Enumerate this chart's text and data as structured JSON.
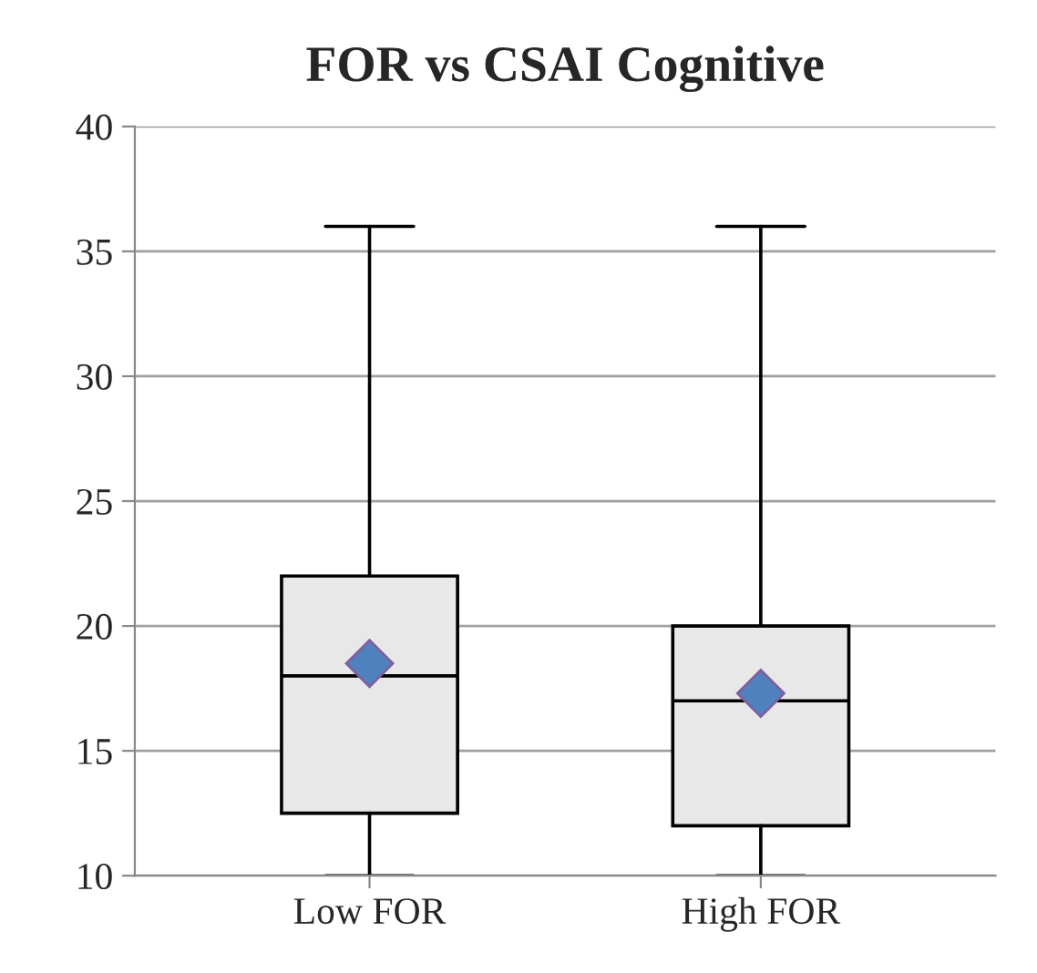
{
  "chart_data": {
    "type": "box",
    "title": "FOR vs CSAI Cognitive",
    "categories": [
      "Low FOR",
      "High FOR"
    ],
    "boxes": [
      {
        "low": 10,
        "q1": 12.5,
        "median": 18,
        "q3": 22,
        "high": 36,
        "mean": 18.5
      },
      {
        "low": 10,
        "q1": 12,
        "median": 17,
        "q3": 20,
        "high": 36,
        "mean": 17.3
      }
    ],
    "color": "#e8e8e8",
    "ylim": [
      10,
      40
    ],
    "yticks": [
      10,
      15,
      20,
      25,
      30,
      35,
      40
    ],
    "grid": "y",
    "marker": "diamond"
  }
}
